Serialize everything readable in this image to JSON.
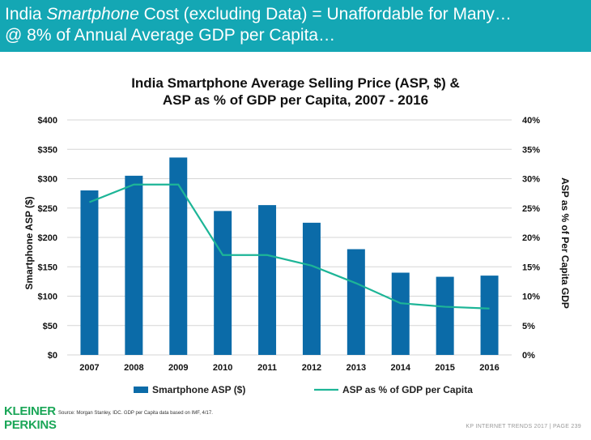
{
  "header": {
    "line1_pre": "India ",
    "line1_italic": "Smartphone",
    "line1_post": " Cost (excluding Data) = Unaffordable for Many…",
    "line2": "@ 8% of Annual Average GDP per Capita…"
  },
  "colors": {
    "header_bg": "#14a7b4",
    "bar": "#0b6ba8",
    "line": "#1db597",
    "logo": "#1aa657"
  },
  "chart_data": {
    "type": "bar",
    "title_line1": "India Smartphone Average Selling Price (ASP, $) &",
    "title_line2": "ASP as % of GDP per Capita, 2007 - 2016",
    "categories": [
      "2007",
      "2008",
      "2009",
      "2010",
      "2011",
      "2012",
      "2013",
      "2014",
      "2015",
      "2016"
    ],
    "series": [
      {
        "name": "Smartphone ASP ($)",
        "type": "bar",
        "axis": "left",
        "values": [
          280,
          305,
          336,
          245,
          255,
          225,
          180,
          140,
          133,
          135
        ]
      },
      {
        "name": "ASP as % of GDP per Capita",
        "type": "line",
        "axis": "right",
        "values": [
          26,
          29,
          29,
          17,
          17,
          15.2,
          12.2,
          8.8,
          8.2,
          7.9
        ]
      }
    ],
    "ylabel": "Smartphone ASP ($)",
    "y2label": "ASP as % of Per Capita GDP",
    "ylim": [
      0,
      400
    ],
    "y2lim": [
      0,
      40
    ],
    "yticks": [
      "$0",
      "$50",
      "$100",
      "$150",
      "$200",
      "$250",
      "$300",
      "$350",
      "$400"
    ],
    "y2ticks": [
      "0%",
      "5%",
      "10%",
      "15%",
      "20%",
      "25%",
      "30%",
      "35%",
      "40%"
    ],
    "legend": [
      "Smartphone ASP ($)",
      "ASP as % of GDP per Capita"
    ]
  },
  "footer": {
    "logo_line1": "KLEINER",
    "logo_line2": "PERKINS",
    "source": "Source: Morgan Stanley, IDC. GDP per Capita data based on IMF, 4/17.",
    "page": "KP INTERNET TRENDS 2017  |  PAGE 239"
  }
}
